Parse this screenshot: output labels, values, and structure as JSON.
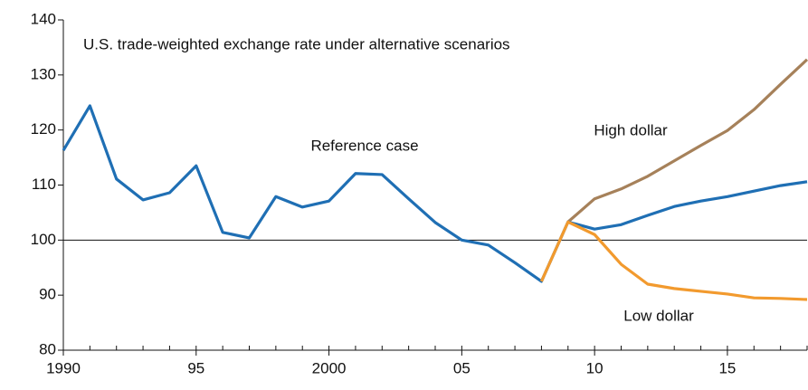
{
  "chart_data": {
    "type": "line",
    "title": "U.S. trade-weighted exchange rate under alternative scenarios",
    "x": [
      1990,
      1991,
      1992,
      1993,
      1994,
      1995,
      1996,
      1997,
      1998,
      1999,
      2000,
      2001,
      2002,
      2003,
      2004,
      2005,
      2006,
      2007,
      2008,
      2009,
      2010,
      2011,
      2012,
      2013,
      2014,
      2015,
      2016,
      2017,
      2018
    ],
    "series": [
      {
        "name": "Reference case",
        "color": "#1f6fb4",
        "values": [
          116.3,
          124.4,
          111.1,
          107.3,
          108.6,
          113.5,
          101.4,
          100.4,
          107.9,
          106.0,
          107.1,
          112.1,
          111.9,
          107.5,
          103.2,
          100.0,
          99.1,
          95.9,
          92.5,
          103.3,
          102.0,
          102.8,
          104.5,
          106.1,
          107.1,
          107.9,
          108.9,
          109.9,
          110.6
        ]
      },
      {
        "name": "High dollar",
        "color": "#a6815a",
        "values": [
          null,
          null,
          null,
          null,
          null,
          null,
          null,
          null,
          null,
          null,
          null,
          null,
          null,
          null,
          null,
          null,
          null,
          null,
          null,
          103.3,
          107.5,
          109.3,
          111.6,
          114.4,
          117.2,
          119.9,
          123.7,
          128.3,
          132.8
        ]
      },
      {
        "name": "Low dollar",
        "color": "#f29a2e",
        "values": [
          null,
          null,
          null,
          null,
          null,
          null,
          null,
          null,
          null,
          null,
          null,
          null,
          null,
          null,
          null,
          null,
          null,
          null,
          92.5,
          103.3,
          101.0,
          95.6,
          92.0,
          91.2,
          90.7,
          90.2,
          89.5,
          89.4,
          89.2
        ]
      }
    ],
    "xlim": [
      1990,
      2018
    ],
    "xticks": [
      {
        "value": 1990,
        "label": "1990"
      },
      {
        "value": 1995,
        "label": "95"
      },
      {
        "value": 2000,
        "label": "2000"
      },
      {
        "value": 2005,
        "label": "05"
      },
      {
        "value": 2010,
        "label": "10"
      },
      {
        "value": 2015,
        "label": "15"
      }
    ],
    "ylim": [
      80,
      140
    ],
    "yticks": [
      80,
      90,
      100,
      110,
      120,
      130,
      140
    ],
    "reference_line": 100
  }
}
